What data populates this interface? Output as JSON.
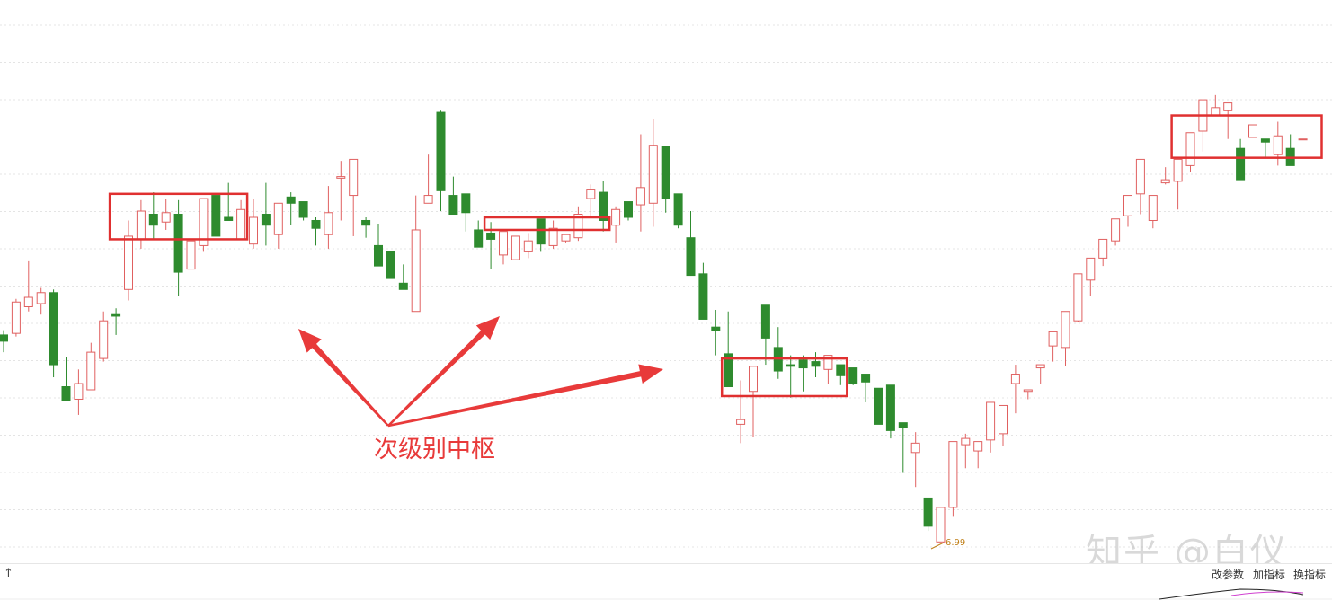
{
  "chart_data": {
    "type": "candlestick",
    "up_color": "#e06060",
    "down_color": "#2e8b2e",
    "box_color": "#e03030",
    "arrow_color": "#e83a3a",
    "ylim": [
      6.8,
      10.1
    ],
    "grid": true,
    "candles": [
      [
        8.25,
        8.28,
        8.14,
        8.21
      ],
      [
        8.26,
        8.48,
        8.24,
        8.46
      ],
      [
        8.43,
        8.72,
        8.4,
        8.49
      ],
      [
        8.45,
        8.55,
        8.38,
        8.52
      ],
      [
        8.52,
        8.54,
        7.98,
        8.06
      ],
      [
        7.92,
        8.11,
        7.85,
        7.83
      ],
      [
        7.84,
        8.03,
        7.74,
        7.94
      ],
      [
        7.9,
        8.2,
        7.9,
        8.14
      ],
      [
        8.1,
        8.4,
        8.08,
        8.34
      ],
      [
        8.38,
        8.42,
        8.25,
        8.37
      ],
      [
        8.54,
        8.98,
        8.47,
        8.88
      ],
      [
        8.86,
        9.11,
        8.8,
        9.04
      ],
      [
        9.02,
        9.16,
        8.86,
        8.95
      ],
      [
        8.97,
        9.12,
        8.92,
        9.03
      ],
      [
        9.02,
        9.11,
        8.5,
        8.65
      ],
      [
        8.67,
        8.96,
        8.61,
        8.85
      ],
      [
        8.82,
        9.12,
        8.78,
        9.12
      ],
      [
        9.14,
        9.12,
        8.89,
        8.88
      ],
      [
        9.0,
        9.22,
        8.98,
        8.98
      ],
      [
        8.86,
        9.11,
        8.98,
        9.05
      ],
      [
        8.83,
        9.12,
        8.8,
        9.0
      ],
      [
        9.02,
        9.22,
        8.82,
        8.95
      ],
      [
        8.89,
        9.07,
        8.8,
        9.09
      ],
      [
        9.13,
        9.16,
        8.95,
        9.09
      ],
      [
        9.1,
        9.05,
        8.98,
        9.0
      ],
      [
        8.98,
        9.0,
        8.82,
        8.93
      ],
      [
        8.89,
        9.2,
        8.8,
        9.03
      ],
      [
        9.25,
        9.36,
        8.98,
        9.26
      ],
      [
        9.14,
        9.26,
        8.88,
        9.37
      ],
      [
        8.98,
        9.0,
        8.87,
        8.95
      ],
      [
        8.82,
        8.96,
        8.82,
        8.69
      ],
      [
        8.78,
        8.78,
        8.66,
        8.61
      ],
      [
        8.58,
        8.7,
        8.56,
        8.54
      ],
      [
        8.4,
        9.14,
        8.46,
        8.92
      ],
      [
        9.09,
        9.4,
        9.1,
        9.14
      ],
      [
        9.67,
        9.68,
        9.04,
        9.17
      ],
      [
        9.14,
        9.26,
        9.04,
        9.02
      ],
      [
        9.15,
        9.04,
        8.91,
        9.03
      ],
      [
        8.92,
        8.98,
        8.84,
        8.81
      ],
      [
        8.9,
        8.97,
        8.67,
        8.86
      ],
      [
        8.76,
        8.88,
        8.7,
        8.91
      ],
      [
        8.73,
        8.88,
        8.73,
        8.88
      ],
      [
        8.78,
        8.9,
        8.74,
        8.85
      ],
      [
        8.99,
        8.95,
        8.78,
        8.83
      ],
      [
        8.82,
        8.98,
        8.8,
        8.93
      ],
      [
        8.85,
        8.85,
        8.84,
        8.89
      ],
      [
        8.87,
        9.07,
        8.85,
        9.02
      ],
      [
        9.12,
        9.21,
        9.01,
        9.18
      ],
      [
        9.16,
        9.23,
        8.91,
        8.98
      ],
      [
        8.95,
        9.07,
        8.84,
        9.05
      ],
      [
        9.1,
        9.06,
        8.98,
        9.0
      ],
      [
        9.08,
        9.53,
        8.91,
        9.19
      ],
      [
        9.09,
        9.63,
        8.94,
        9.46
      ],
      [
        9.45,
        9.23,
        9.03,
        9.12
      ],
      [
        9.15,
        9.06,
        8.93,
        8.95
      ],
      [
        8.87,
        9.04,
        8.82,
        8.63
      ],
      [
        8.64,
        8.71,
        8.56,
        8.35
      ],
      [
        8.3,
        8.41,
        8.12,
        8.28
      ],
      [
        8.13,
        8.4,
        7.99,
        7.92
      ],
      [
        7.68,
        7.96,
        7.56,
        7.71
      ],
      [
        7.89,
        8.05,
        7.6,
        8.05
      ],
      [
        8.44,
        8.32,
        8.06,
        8.23
      ],
      [
        8.17,
        8.3,
        7.97,
        8.02
      ],
      [
        8.06,
        8.12,
        7.85,
        8.05
      ],
      [
        8.09,
        8.12,
        7.89,
        8.04
      ],
      [
        8.08,
        8.14,
        7.98,
        8.05
      ],
      [
        8.03,
        8.04,
        7.94,
        8.12
      ],
      [
        8.06,
        8.04,
        7.93,
        7.99
      ],
      [
        8.04,
        7.97,
        7.93,
        7.94
      ],
      [
        8.0,
        7.99,
        7.82,
        7.95
      ],
      [
        7.91,
        7.83,
        7.69,
        7.68
      ],
      [
        7.93,
        7.78,
        7.59,
        7.64
      ],
      [
        7.69,
        7.6,
        7.37,
        7.66
      ],
      [
        7.5,
        7.63,
        7.28,
        7.56
      ],
      [
        7.21,
        7.09,
        7.0,
        7.03
      ],
      [
        6.93,
        6.96,
        6.99,
        7.15
      ],
      [
        7.15,
        7.15,
        7.09,
        7.57
      ],
      [
        7.55,
        7.62,
        7.4,
        7.59
      ],
      [
        7.51,
        7.48,
        7.4,
        7.57
      ],
      [
        7.58,
        7.82,
        7.5,
        7.82
      ],
      [
        7.62,
        7.73,
        7.54,
        7.8
      ],
      [
        7.94,
        8.06,
        7.75,
        8.0
      ],
      [
        7.89,
        7.89,
        7.84,
        7.9
      ],
      [
        8.04,
        8.03,
        7.94,
        8.06
      ],
      [
        8.18,
        8.21,
        8.08,
        8.27
      ],
      [
        8.17,
        8.25,
        8.05,
        8.4
      ],
      [
        8.34,
        8.43,
        8.33,
        8.64
      ],
      [
        8.6,
        8.61,
        8.5,
        8.74
      ],
      [
        8.74,
        8.75,
        8.69,
        8.86
      ],
      [
        8.85,
        8.87,
        8.82,
        8.99
      ],
      [
        9.01,
        9.09,
        8.94,
        9.14
      ],
      [
        9.15,
        9.11,
        9.02,
        9.37
      ],
      [
        8.98,
        9.1,
        8.93,
        9.14
      ],
      [
        9.22,
        9.32,
        9.21,
        9.24
      ],
      [
        9.23,
        9.19,
        9.05,
        9.37
      ],
      [
        9.33,
        9.43,
        9.29,
        9.54
      ],
      [
        9.55,
        9.54,
        9.42,
        9.75
      ],
      [
        9.65,
        9.78,
        9.68,
        9.7
      ],
      [
        9.68,
        9.67,
        9.5,
        9.73
      ],
      [
        9.44,
        9.5,
        9.46,
        9.24
      ],
      [
        9.51,
        9.5,
        9.52,
        9.59
      ],
      [
        9.5,
        9.44,
        9.38,
        9.48
      ],
      [
        9.4,
        9.61,
        9.33,
        9.52
      ],
      [
        9.44,
        9.53,
        9.4,
        9.33
      ],
      [
        9.5,
        9.5,
        9.5,
        9.5
      ]
    ],
    "boxes": [
      {
        "from": 9.15,
        "to": 8.86,
        "i0": 9,
        "i1": 19
      },
      {
        "from": 9.0,
        "to": 8.92,
        "i0": 39,
        "i1": 48
      },
      {
        "from": 8.1,
        "to": 7.86,
        "i0": 58,
        "i1": 67
      },
      {
        "from": 9.65,
        "to": 9.38,
        "i0": 94,
        "i1": 105
      }
    ],
    "annotation": "次级别中枢",
    "low_label": "6.99"
  },
  "toolbar": {
    "arrow": "↑",
    "btn_params": "改参数",
    "btn_add": "加指标",
    "btn_switch": "换指标"
  },
  "watermark": "知乎 @白仪"
}
